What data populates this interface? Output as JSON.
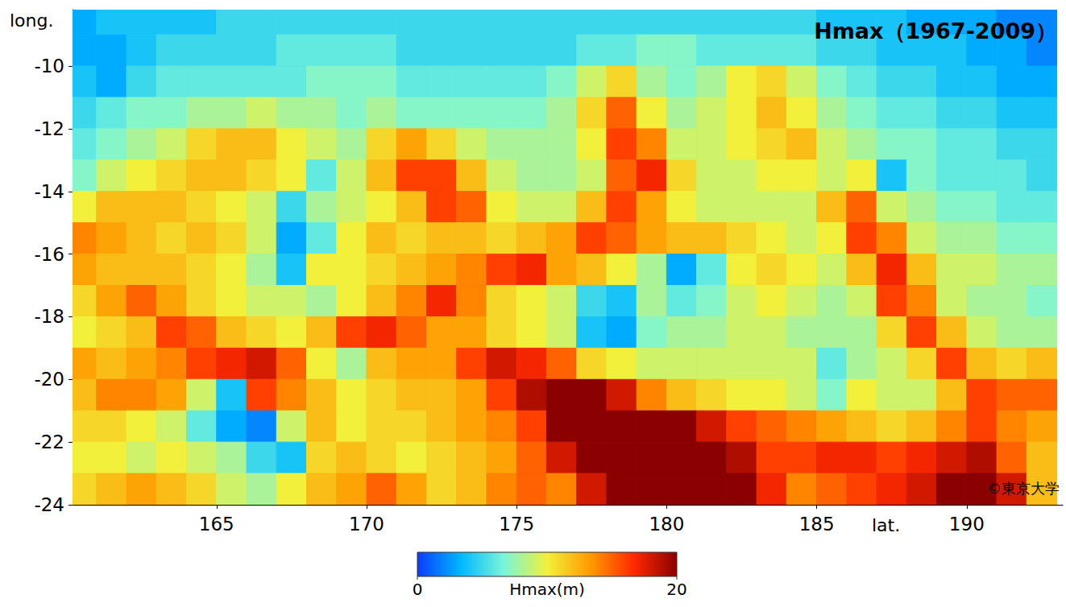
{
  "chart_data": {
    "type": "heatmap",
    "title": "Hmax（1967-2009）",
    "xlabel": "lat.",
    "ylabel": "long.",
    "annotations": [
      "©東京大学"
    ],
    "x": [
      160.5,
      161.5,
      162.5,
      163.5,
      164.5,
      165.5,
      166.5,
      167.5,
      168.5,
      169.5,
      170.5,
      171.5,
      172.5,
      173.5,
      174.5,
      175.5,
      176.5,
      177.5,
      178.5,
      179.5,
      180.5,
      181.5,
      182.5,
      183.5,
      184.5,
      185.5,
      186.5,
      187.5,
      188.5,
      189.5,
      190.5,
      191.5,
      192.5
    ],
    "y": [
      -8.5,
      -9.5,
      -10.5,
      -11.5,
      -12.5,
      -13.5,
      -14.5,
      -15.5,
      -16.5,
      -17.5,
      -18.5,
      -19.5,
      -20.5,
      -21.5,
      -22.5,
      -23.5
    ],
    "values": [
      [
        3,
        4,
        4,
        4,
        4,
        5,
        5,
        5,
        5,
        5,
        5,
        5,
        5,
        5,
        5,
        5,
        5,
        5,
        5,
        5,
        5,
        5,
        5,
        5,
        5,
        4,
        4,
        4,
        3,
        3,
        3,
        2,
        2
      ],
      [
        3,
        3,
        4,
        5,
        5,
        5,
        5,
        6,
        6,
        6,
        6,
        5,
        5,
        5,
        5,
        5,
        5,
        6,
        6,
        7,
        7,
        6,
        6,
        6,
        6,
        5,
        5,
        4,
        4,
        4,
        3,
        3,
        2
      ],
      [
        4,
        3,
        5,
        6,
        6,
        6,
        6,
        6,
        7,
        7,
        7,
        6,
        6,
        6,
        6,
        6,
        7,
        9,
        11,
        8,
        7,
        8,
        10,
        11,
        9,
        7,
        6,
        5,
        5,
        4,
        4,
        3,
        3
      ],
      [
        5,
        6,
        7,
        7,
        8,
        8,
        9,
        8,
        8,
        7,
        8,
        7,
        7,
        7,
        7,
        7,
        8,
        11,
        15,
        10,
        8,
        9,
        10,
        12,
        10,
        8,
        7,
        6,
        6,
        5,
        5,
        4,
        4
      ],
      [
        6,
        7,
        8,
        9,
        11,
        12,
        12,
        10,
        9,
        8,
        11,
        13,
        11,
        9,
        8,
        8,
        8,
        10,
        16,
        14,
        9,
        9,
        10,
        11,
        12,
        9,
        8,
        7,
        7,
        6,
        6,
        5,
        5
      ],
      [
        7,
        9,
        10,
        11,
        12,
        12,
        11,
        10,
        6,
        9,
        12,
        16,
        16,
        12,
        9,
        8,
        8,
        9,
        15,
        17,
        11,
        9,
        9,
        10,
        10,
        9,
        10,
        4,
        7,
        6,
        6,
        6,
        5
      ],
      [
        10,
        12,
        12,
        12,
        11,
        10,
        9,
        5,
        8,
        9,
        10,
        12,
        16,
        15,
        10,
        9,
        9,
        12,
        16,
        13,
        10,
        9,
        9,
        9,
        9,
        12,
        15,
        9,
        8,
        7,
        7,
        6,
        6
      ],
      [
        14,
        13,
        12,
        11,
        12,
        11,
        9,
        3,
        6,
        10,
        12,
        11,
        12,
        12,
        11,
        12,
        13,
        16,
        15,
        13,
        12,
        12,
        11,
        10,
        9,
        10,
        16,
        14,
        9,
        8,
        8,
        7,
        7
      ],
      [
        13,
        12,
        12,
        12,
        11,
        10,
        8,
        4,
        10,
        10,
        11,
        12,
        13,
        14,
        16,
        17,
        13,
        12,
        10,
        8,
        3,
        6,
        10,
        11,
        10,
        9,
        12,
        17,
        12,
        9,
        9,
        8,
        8
      ],
      [
        11,
        13,
        15,
        13,
        11,
        10,
        9,
        9,
        8,
        10,
        12,
        14,
        17,
        14,
        11,
        10,
        9,
        5,
        4,
        8,
        6,
        7,
        9,
        10,
        9,
        8,
        9,
        16,
        14,
        9,
        8,
        8,
        7
      ],
      [
        10,
        11,
        12,
        16,
        15,
        12,
        11,
        10,
        12,
        16,
        17,
        15,
        13,
        13,
        11,
        10,
        9,
        4,
        3,
        7,
        8,
        8,
        9,
        9,
        8,
        8,
        8,
        11,
        16,
        12,
        9,
        8,
        8
      ],
      [
        13,
        12,
        13,
        14,
        16,
        17,
        18,
        15,
        10,
        8,
        12,
        13,
        13,
        16,
        18,
        17,
        15,
        11,
        10,
        9,
        9,
        9,
        9,
        9,
        9,
        6,
        8,
        9,
        11,
        16,
        12,
        11,
        12
      ],
      [
        12,
        14,
        14,
        13,
        9,
        4,
        16,
        14,
        12,
        10,
        11,
        12,
        12,
        13,
        16,
        19,
        20,
        20,
        18,
        14,
        12,
        11,
        10,
        10,
        9,
        7,
        10,
        9,
        9,
        12,
        16,
        15,
        15
      ],
      [
        11,
        11,
        10,
        9,
        6,
        3,
        2,
        9,
        12,
        10,
        11,
        11,
        12,
        13,
        14,
        16,
        20,
        20,
        20,
        20,
        20,
        18,
        16,
        15,
        14,
        13,
        12,
        11,
        12,
        14,
        16,
        14,
        13
      ],
      [
        10,
        10,
        9,
        10,
        9,
        8,
        5,
        4,
        11,
        12,
        11,
        10,
        11,
        12,
        13,
        15,
        18,
        20,
        20,
        20,
        20,
        20,
        19,
        16,
        16,
        17,
        17,
        16,
        17,
        18,
        19,
        15,
        12
      ],
      [
        11,
        12,
        13,
        12,
        11,
        9,
        8,
        10,
        12,
        13,
        15,
        13,
        11,
        12,
        14,
        15,
        14,
        18,
        20,
        20,
        20,
        20,
        20,
        17,
        14,
        15,
        16,
        17,
        18,
        20,
        20,
        18,
        12
      ]
    ],
    "xlim": [
      160.2,
      193.2
    ],
    "ylim": [
      -24,
      -8.2
    ],
    "xticks": [
      165,
      170,
      175,
      180,
      185,
      190
    ],
    "yticks": [
      -24,
      -22,
      -20,
      -18,
      -16,
      -14,
      -12,
      -10
    ],
    "colorbar": {
      "label": "Hmax(m)",
      "range": [
        0,
        20
      ],
      "ticks": [
        0,
        20
      ]
    }
  }
}
